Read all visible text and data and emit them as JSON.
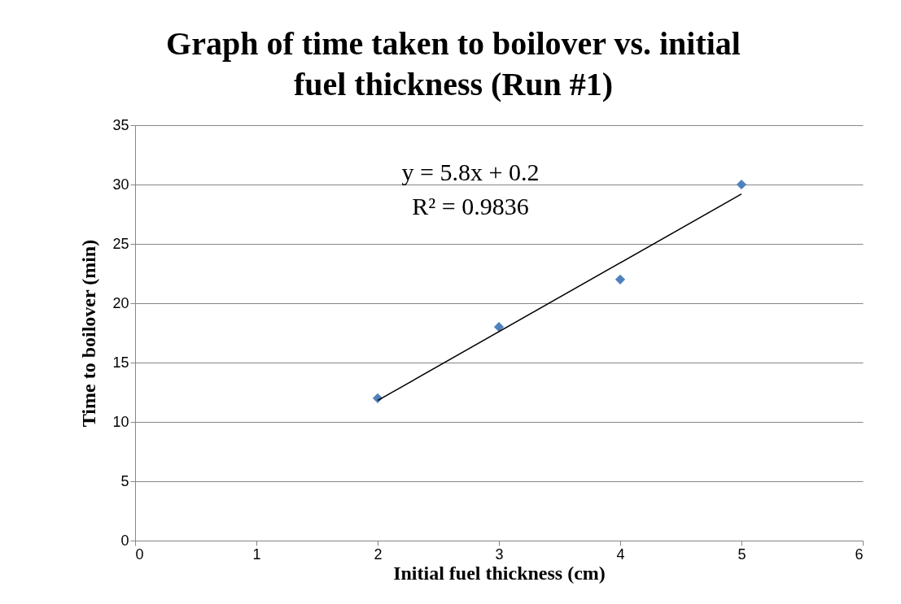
{
  "chart_data": {
    "type": "scatter",
    "title": "Graph of time taken to boilover vs. initial fuel thickness (Run #1)",
    "xlabel": "Initial fuel thickness (cm)",
    "ylabel": "Time to boilover (min)",
    "x": [
      2,
      3,
      4,
      5
    ],
    "series": [
      {
        "color": "#4f81bd",
        "marker": "diamond",
        "values": [
          12,
          18,
          22,
          30
        ]
      },
      {
        "type": "line",
        "color": "#000000",
        "marker": "none",
        "x": [
          2,
          5
        ],
        "values": [
          11.8,
          29.2
        ]
      }
    ],
    "annotations": [
      "y = 5.8x + 0.2",
      "R² = 0.9836"
    ],
    "xlim": [
      0,
      6
    ],
    "xticks": [
      0,
      1,
      2,
      3,
      4,
      5,
      6
    ],
    "ylim": [
      0,
      35
    ],
    "yticks": [
      0,
      5,
      10,
      15,
      20,
      25,
      30,
      35
    ],
    "grid": "y"
  }
}
